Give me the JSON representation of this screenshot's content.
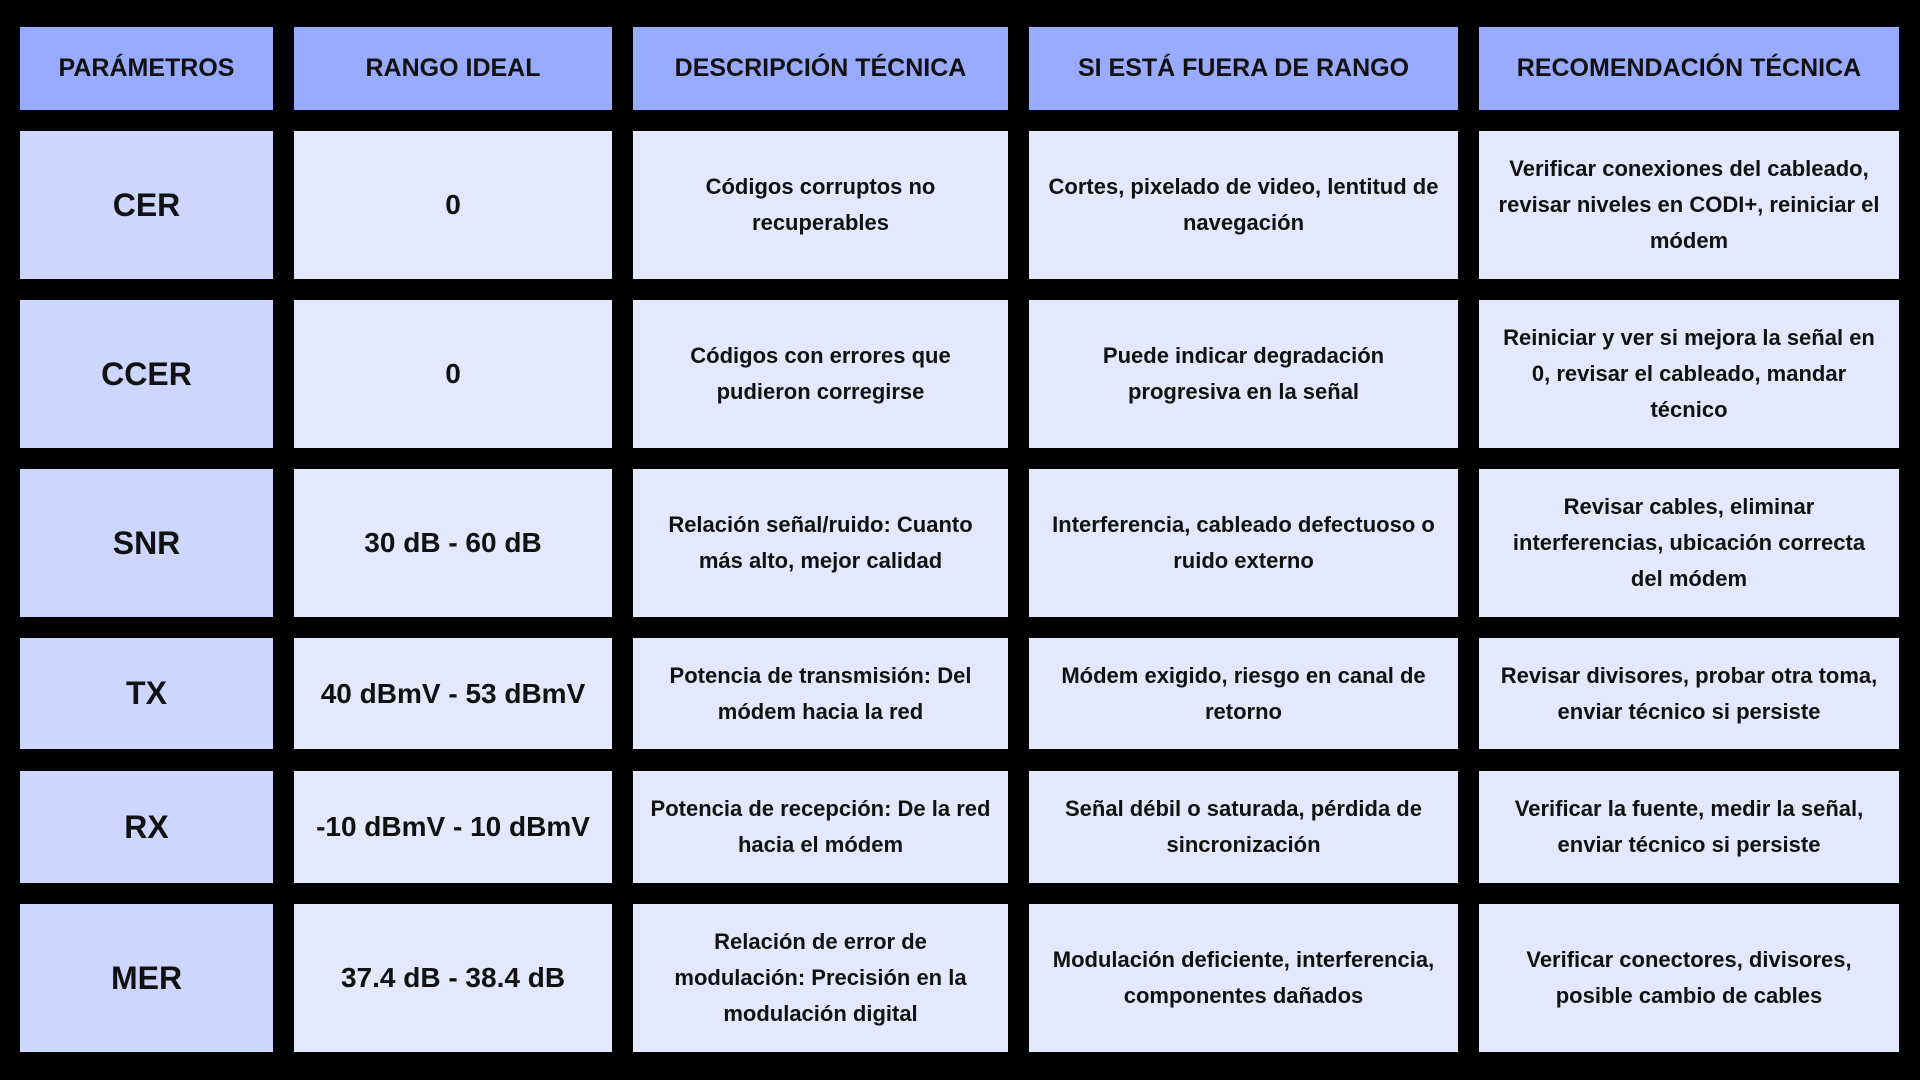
{
  "colors": {
    "header": "#99abff",
    "parameter_cell": "#ccd6ff",
    "cell": "#e3e8fd",
    "background": "#000000"
  },
  "headers": [
    "PARÁMETROS",
    "RANGO IDEAL",
    "DESCRIPCIÓN TÉCNICA",
    "SI ESTÁ FUERA DE RANGO",
    "RECOMENDACIÓN TÉCNICA"
  ],
  "rows": [
    {
      "param": "CER",
      "range": "0",
      "description": "Códigos corruptos no recuperables",
      "out_of_range": "Cortes, pixelado de video, lentitud de navegación",
      "recommendation": "Verificar conexiones del cableado, revisar niveles en CODI+, reiniciar el módem"
    },
    {
      "param": "CCER",
      "range": "0",
      "description": "Códigos con errores que pudieron corregirse",
      "out_of_range": "Puede indicar degradación progresiva en la señal",
      "recommendation": "Reiniciar y ver si mejora la señal en 0, revisar el cableado, mandar técnico"
    },
    {
      "param": "SNR",
      "range": "30 dB - 60 dB",
      "description": "Relación señal/ruido: Cuanto más alto, mejor calidad",
      "out_of_range": "Interferencia, cableado defectuoso o ruido externo",
      "recommendation": "Revisar cables, eliminar interferencias, ubicación correcta del módem"
    },
    {
      "param": "TX",
      "range": "40 dBmV - 53 dBmV",
      "description": "Potencia de transmisión: Del módem hacia la red",
      "out_of_range": "Módem exigido, riesgo en canal de retorno",
      "recommendation": "Revisar divisores, probar otra toma, enviar técnico si persiste"
    },
    {
      "param": "RX",
      "range": "-10 dBmV - 10 dBmV",
      "description": "Potencia de recepción: De la red hacia el módem",
      "out_of_range": "Señal débil o saturada, pérdida de sincronización",
      "recommendation": "Verificar la fuente, medir la señal, enviar técnico si persiste"
    },
    {
      "param": "MER",
      "range": "37.4 dB - 38.4 dB",
      "description": "Relación de error de modulación: Precisión en la modulación digital",
      "out_of_range": "Modulación deficiente, interferencia, componentes dañados",
      "recommendation": "Verificar conectores, divisores, posible cambio de cables"
    }
  ]
}
